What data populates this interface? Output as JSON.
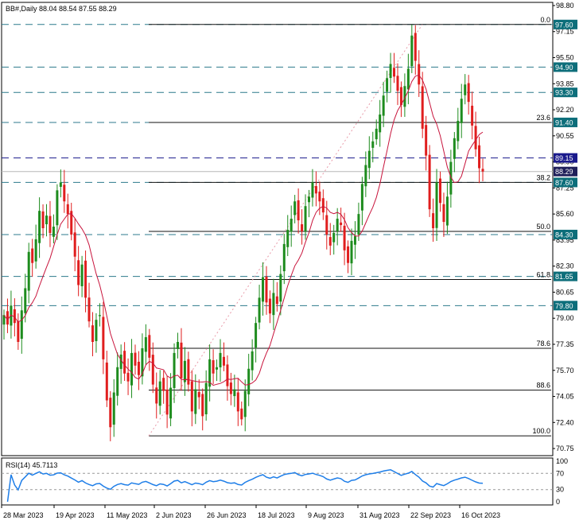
{
  "header": {
    "symbol_line": "BB#,Daily  88.04 88.54 87.55 88.29",
    "rsi_label": "RSI(14) 45.7113"
  },
  "colors": {
    "bull": "#1e8c1e",
    "bear": "#e01e1e",
    "ma": "#c8143c",
    "level_dash": "#2c7a8c",
    "fib": "#111111",
    "rsi": "#1e7ee8",
    "price_badge": "#0d6e7a",
    "current_badge": "#20205a",
    "dark_badge": "#1a1a8c"
  },
  "chart_data": [
    {
      "type": "candlestick",
      "title": "BB#,Daily",
      "ylim": [
        70.3,
        99.0
      ],
      "y_ticks": [
        "98.80",
        "97.15",
        "95.50",
        "93.85",
        "92.20",
        "90.55",
        "88.90",
        "87.25",
        "85.60",
        "83.95",
        "82.30",
        "80.65",
        "79.00",
        "77.35",
        "75.70",
        "74.05",
        "72.40",
        "70.75"
      ],
      "x_ticks": [
        "28 Mar 2023",
        "19 Apr 2023",
        "11 May 2023",
        "2 Jun 2023",
        "26 Jun 2023",
        "18 Jul 2023",
        "9 Aug 2023",
        "31 Aug 2023",
        "22 Sep 2023",
        "16 Oct 2023"
      ],
      "horizontal_levels": [
        97.6,
        94.9,
        93.3,
        91.4,
        89.15,
        87.6,
        84.3,
        81.65,
        79.8
      ],
      "current_price": 88.29,
      "fibonacci": [
        {
          "label": "0.0",
          "price": 97.6
        },
        {
          "label": "23.6",
          "price": 91.4
        },
        {
          "label": "38.2",
          "price": 87.6
        },
        {
          "label": "50.0",
          "price": 84.5
        },
        {
          "label": "61.8",
          "price": 81.45
        },
        {
          "label": "78.6",
          "price": 77.1
        },
        {
          "label": "88.6",
          "price": 74.45
        },
        {
          "label": "100.0",
          "price": 71.55
        }
      ],
      "anchor_points": [
        71.55,
        97.6
      ],
      "candles_close": [
        79.2,
        78.6,
        79.8,
        78.7,
        77.5,
        79.5,
        80.9,
        83.2,
        82.5,
        84.0,
        85.8,
        84.7,
        85.5,
        84.4,
        84.8,
        87.1,
        87.6,
        86.4,
        85.6,
        84.3,
        82.9,
        81.1,
        82.4,
        80.3,
        78.8,
        77.5,
        78.9,
        79.2,
        76.4,
        73.8,
        72.1,
        74.3,
        75.9,
        76.7,
        75.5,
        75.0,
        76.8,
        76.0,
        75.4,
        77.1,
        77.8,
        76.5,
        74.8,
        73.6,
        75.0,
        74.4,
        72.9,
        74.6,
        76.8,
        77.5,
        75.2,
        76.3,
        74.8,
        73.1,
        74.5,
        74.0,
        72.8,
        74.9,
        76.4,
        75.5,
        75.9,
        76.8,
        76.0,
        74.7,
        74.2,
        74.5,
        73.1,
        72.6,
        74.4,
        75.8,
        76.9,
        78.7,
        80.3,
        81.6,
        80.0,
        79.3,
        80.6,
        79.9,
        81.8,
        83.7,
        84.6,
        85.3,
        86.4,
        85.2,
        84.5,
        86.1,
        86.7,
        87.6,
        86.9,
        86.4,
        85.7,
        84.3,
        83.6,
        84.4,
        85.3,
        84.9,
        83.3,
        82.5,
        83.9,
        84.2,
        85.6,
        87.5,
        88.7,
        89.6,
        90.2,
        91.0,
        91.9,
        93.1,
        94.2,
        95.1,
        94.3,
        93.4,
        92.5,
        93.7,
        94.8,
        96.9,
        95.3,
        93.8,
        91.0,
        89.3,
        85.9,
        84.7,
        87.6,
        86.3,
        85.1,
        86.7,
        88.9,
        90.4,
        91.5,
        92.9,
        93.8,
        92.7,
        91.2,
        89.7,
        88.5,
        88.29
      ],
      "ma_period": 10
    },
    {
      "type": "line",
      "title": "RSI(14) 45.7113",
      "ylim": [
        0,
        100
      ],
      "y_ticks": [
        "100",
        "70",
        "30",
        "0"
      ],
      "last_value": 45.7113
    }
  ]
}
